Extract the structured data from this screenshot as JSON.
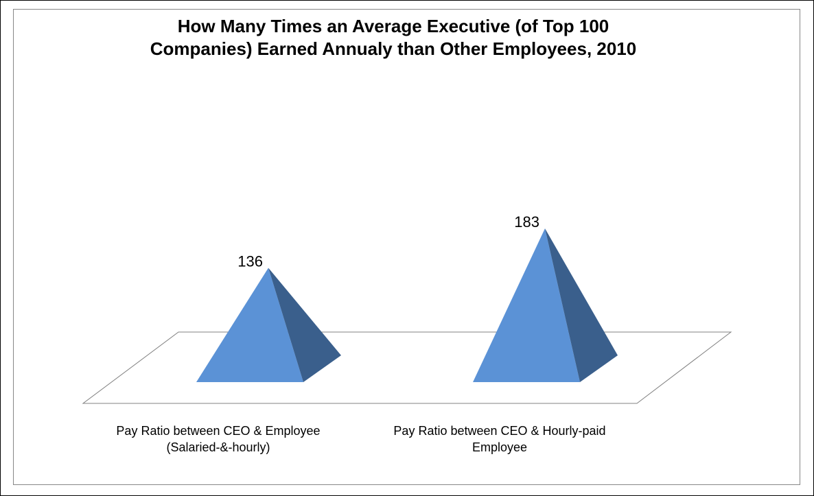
{
  "chart_data": {
    "type": "bar",
    "shape": "pyramid-3d",
    "title_lines": [
      "How Many Times an Average Executive (of Top 100",
      "Companies) Earned Annualy than Other Employees, 2010"
    ],
    "categories": [
      [
        "Pay Ratio between CEO & Employee",
        "(Salaried-&-hourly)"
      ],
      [
        "Pay Ratio between CEO & Hourly-paid",
        "Employee"
      ]
    ],
    "values": [
      136,
      183
    ],
    "data_labels": [
      "136",
      "183"
    ],
    "ylim": [
      0,
      200
    ],
    "grid": false,
    "legend": "none",
    "colors": {
      "front": "#5b92d6",
      "side": "#3a5f8c",
      "floor_edge": "#808080"
    }
  }
}
